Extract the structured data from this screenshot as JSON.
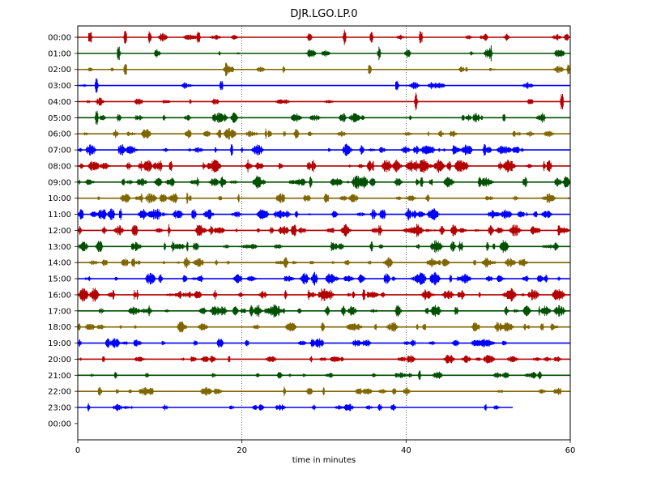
{
  "chart_data": {
    "type": "line",
    "title": "DJR.LGO.LP.0",
    "xlabel": "time in minutes",
    "ylabel": "",
    "xlim": [
      0,
      60
    ],
    "xticks": [
      0,
      20,
      40,
      60
    ],
    "x_gridlines": [
      20,
      40
    ],
    "y_tick_labels": [
      "00:00",
      "01:00",
      "02:00",
      "03:00",
      "04:00",
      "05:00",
      "06:00",
      "07:00",
      "08:00",
      "09:00",
      "10:00",
      "11:00",
      "12:00",
      "13:00",
      "14:00",
      "15:00",
      "16:00",
      "17:00",
      "18:00",
      "19:00",
      "20:00",
      "21:00",
      "22:00",
      "23:00",
      "00:00"
    ],
    "trace_colors": [
      "#b30000",
      "#005000",
      "#806600",
      "#0000ff"
    ],
    "trace_end_minute": [
      60,
      60,
      60,
      60,
      60,
      60,
      60,
      60,
      60,
      60,
      60,
      60,
      60,
      60,
      60,
      60,
      60,
      60,
      60,
      60,
      60,
      60,
      60,
      53
    ],
    "activity": [
      0.2,
      0.15,
      0.15,
      0.12,
      0.15,
      0.35,
      0.45,
      0.55,
      0.7,
      0.6,
      0.45,
      0.6,
      0.65,
      0.6,
      0.5,
      0.65,
      0.7,
      0.6,
      0.45,
      0.4,
      0.4,
      0.3,
      0.3,
      0.25
    ],
    "events_minutes": [
      [
        1.5,
        5.8,
        8.8,
        14.7,
        32.5,
        35.8,
        41.8
      ],
      [
        5.0,
        36.7,
        50.3
      ],
      [
        5.8,
        18.1,
        35.6,
        59.8
      ],
      [
        2.3,
        17.5,
        38.9
      ],
      [
        41.2,
        59.0
      ],
      [
        2.3
      ],
      [],
      [],
      [],
      [],
      [],
      [],
      [],
      [],
      [],
      [],
      [],
      [],
      [],
      [],
      [],
      [],
      [],
      []
    ]
  }
}
